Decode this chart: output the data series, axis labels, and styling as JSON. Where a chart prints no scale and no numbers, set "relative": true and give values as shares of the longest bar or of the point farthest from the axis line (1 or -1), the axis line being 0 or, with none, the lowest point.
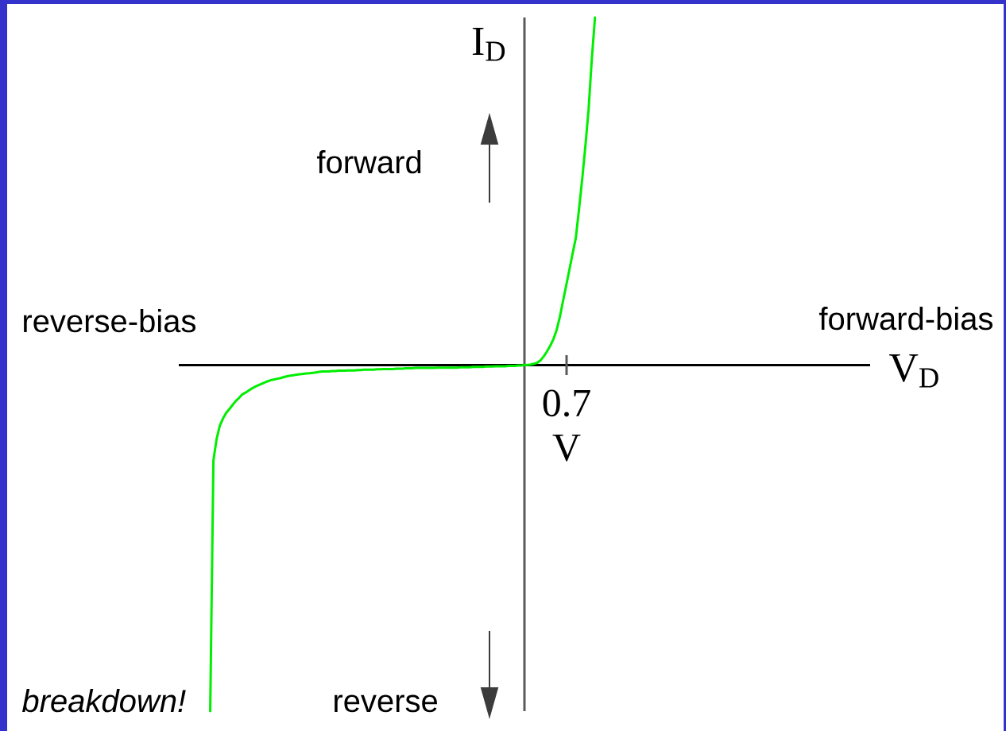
{
  "chart_data": {
    "type": "line",
    "relative": true,
    "ylabel": "I$_{D}$",
    "categories": [
      null,
      null,
      null,
      null,
      null,
      null,
      null,
      null,
      null,
      null,
      null,
      null,
      null,
      null,
      null,
      null,
      null,
      null,
      null,
      null,
      null,
      null,
      null,
      null,
      null,
      null,
      null,
      null,
      null,
      null,
      null,
      null,
      null,
      null,
      null,
      null,
      null,
      null,
      null,
      null,
      null,
      null,
      null,
      null,
      null,
      null,
      null,
      null,
      null,
      null,
      null,
      null,
      null,
      null,
      null,
      null,
      null,
      null,
      null,
      null,
      null,
      null,
      null,
      null,
      null,
      null,
      null,
      null,
      null,
      null,
      null,
      null,
      null,
      null,
      null,
      null,
      null,
      null,
      null,
      null,
      null,
      null,
      null,
      null,
      null,
      null,
      null,
      null,
      null,
      null,
      null,
      null,
      null,
      null,
      null,
      null,
      null,
      null,
      null,
      null,
      null,
      null,
      null,
      null,
      null,
      null,
      null,
      null,
      null,
      null,
      null,
      null,
      null,
      null,
      null,
      null,
      null,
      null,
      null,
      null,
      null
    ],
    "values": [
      -0.995,
      -0.274,
      -0.212,
      -0.174,
      -0.153,
      -0.137,
      -0.126,
      -0.114,
      -0.103,
      -0.094,
      -0.084,
      -0.079,
      -0.073,
      -0.067,
      -0.062,
      -0.058,
      -0.054,
      -0.05,
      -0.046,
      -0.043,
      -0.041,
      -0.039,
      -0.037,
      -0.034,
      -0.032,
      -0.03,
      -0.029,
      -0.027,
      -0.026,
      -0.025,
      -0.024,
      -0.023,
      -0.022,
      -0.021,
      -0.019,
      -0.018,
      -0.018,
      -0.018,
      -0.017,
      -0.017,
      -0.016,
      -0.016,
      -0.016,
      -0.015,
      -0.015,
      -0.015,
      -0.014,
      -0.014,
      -0.013,
      -0.013,
      -0.013,
      -0.013,
      -0.012,
      -0.012,
      -0.011,
      -0.011,
      -0.011,
      -0.011,
      -0.01,
      -0.01,
      -0.01,
      -0.009,
      -0.009,
      -0.009,
      -0.008,
      -0.008,
      -0.008,
      -0.008,
      -0.008,
      -0.008,
      -0.008,
      -0.007,
      -0.007,
      -0.007,
      -0.007,
      -0.007,
      -0.007,
      -0.007,
      -0.006,
      -0.006,
      -0.006,
      -0.006,
      -0.005,
      -0.005,
      -0.005,
      -0.005,
      -0.004,
      -0.004,
      -0.004,
      -0.003,
      -0.003,
      -0.003,
      -0.003,
      -0.002,
      -0.002,
      -0.002,
      -0.001,
      -0.001,
      0,
      0.001,
      0.002,
      0.004,
      0.007,
      0.014,
      0.025,
      0.039,
      0.055,
      0.074,
      0.1,
      0.137,
      0.183,
      0.228,
      0.274,
      0.32,
      0.365,
      0.447,
      0.534,
      0.63,
      0.735,
      0.88,
      1
    ],
    "color": "#00ee00",
    "marker": "none",
    "annotations": [
      "forward",
      "reverse",
      "reverse-bias",
      "forward-bias",
      "breakdown!",
      "0.7 V",
      "V$_{D}$"
    ]
  }
}
